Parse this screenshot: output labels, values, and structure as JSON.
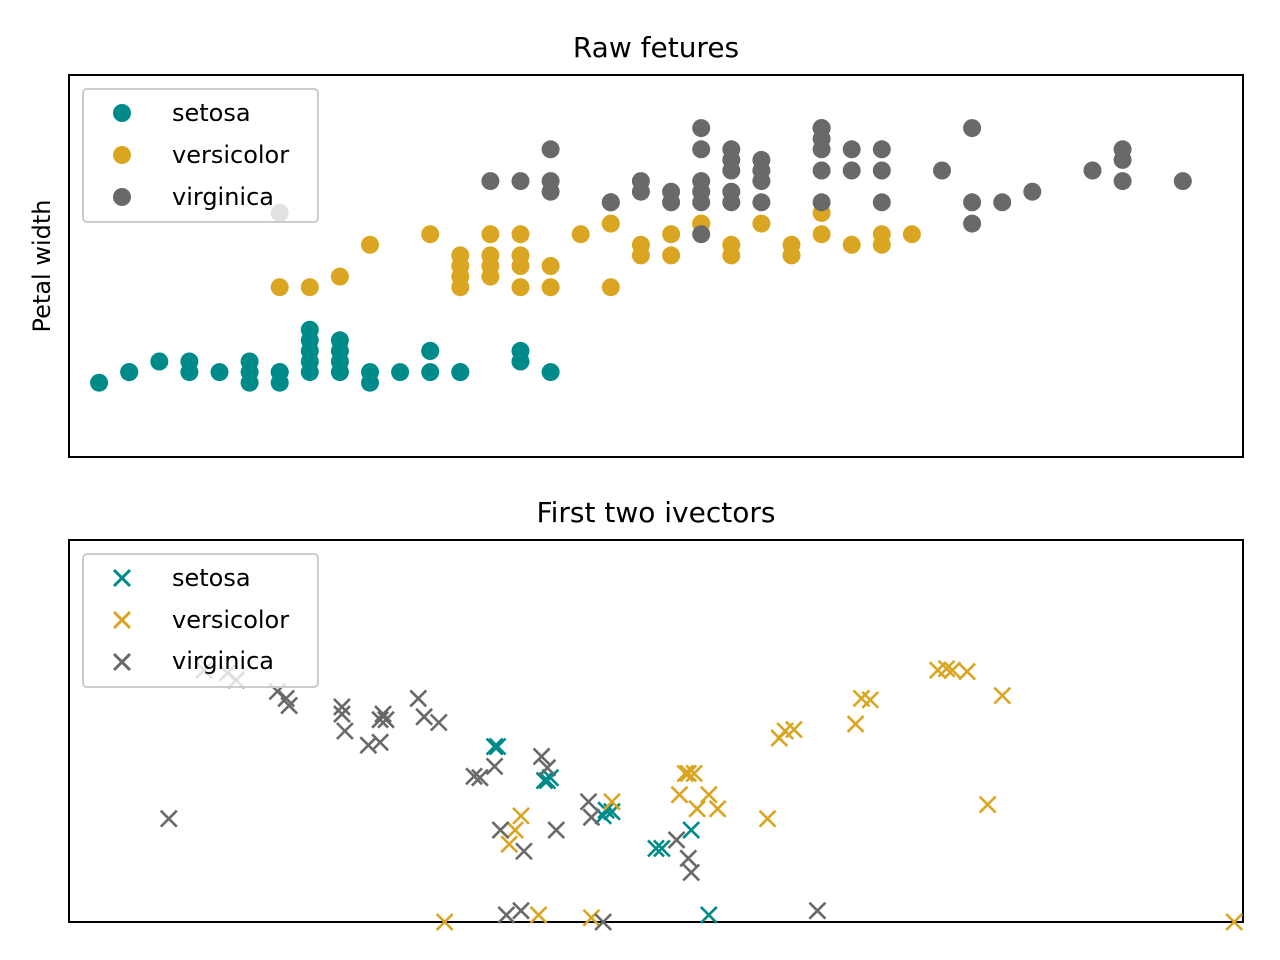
{
  "colors": {
    "setosa": "#008b8b",
    "versicolor": "#daa520",
    "virginica": "#696969"
  },
  "chart_data": [
    {
      "type": "scatter",
      "title": "Raw fetures",
      "xlabel": "",
      "ylabel": "Petal width",
      "xlim": [
        4.2,
        8.1
      ],
      "ylim": [
        -0.6,
        3.0
      ],
      "xticks": [],
      "yticks": [],
      "marker": "o",
      "legend": "top-left",
      "series": [
        {
          "name": "setosa",
          "x": [
            4.3,
            4.4,
            4.4,
            4.5,
            4.6,
            4.6,
            4.7,
            4.8,
            4.8,
            4.8,
            4.9,
            4.9,
            4.9,
            5.0,
            5.0,
            5.0,
            5.0,
            5.0,
            5.1,
            5.1,
            5.1,
            5.1,
            5.2,
            5.2,
            5.3,
            5.4,
            5.4,
            5.4,
            5.5,
            5.5,
            5.7,
            5.7,
            5.8
          ],
          "y": [
            0.1,
            0.2,
            0.2,
            0.3,
            0.2,
            0.3,
            0.2,
            0.1,
            0.2,
            0.3,
            0.1,
            0.2,
            0.2,
            0.2,
            0.3,
            0.4,
            0.5,
            0.6,
            0.2,
            0.3,
            0.4,
            0.5,
            0.1,
            0.2,
            0.2,
            0.2,
            0.4,
            0.4,
            0.2,
            0.2,
            0.3,
            0.4,
            0.2
          ]
        },
        {
          "name": "versicolor",
          "x": [
            4.9,
            5.0,
            5.1,
            5.2,
            5.4,
            5.5,
            5.5,
            5.5,
            5.5,
            5.6,
            5.6,
            5.6,
            5.6,
            5.7,
            5.7,
            5.7,
            5.7,
            5.8,
            5.8,
            5.9,
            6.0,
            6.0,
            6.0,
            6.1,
            6.1,
            6.2,
            6.2,
            6.3,
            6.3,
            6.4,
            6.4,
            6.5,
            6.6,
            6.6,
            6.7,
            6.7,
            6.8,
            6.9,
            6.9,
            7.0
          ],
          "y": [
            1.0,
            1.0,
            1.1,
            1.4,
            1.5,
            1.0,
            1.1,
            1.2,
            1.3,
            1.1,
            1.2,
            1.3,
            1.5,
            1.0,
            1.2,
            1.3,
            1.5,
            1.2,
            1.0,
            1.5,
            1.6,
            1.0,
            1.8,
            1.4,
            1.3,
            1.3,
            1.5,
            1.6,
            1.6,
            1.3,
            1.4,
            1.6,
            1.4,
            1.3,
            1.7,
            1.5,
            1.4,
            1.5,
            1.4,
            1.5
          ]
        },
        {
          "name": "virginica",
          "x": [
            4.9,
            5.6,
            5.7,
            5.8,
            5.8,
            5.8,
            6.0,
            6.0,
            6.1,
            6.1,
            6.2,
            6.2,
            6.3,
            6.3,
            6.3,
            6.3,
            6.3,
            6.3,
            6.4,
            6.4,
            6.4,
            6.4,
            6.4,
            6.5,
            6.5,
            6.5,
            6.5,
            6.7,
            6.7,
            6.7,
            6.7,
            6.7,
            6.7,
            6.8,
            6.8,
            6.9,
            6.9,
            6.9,
            7.1,
            7.2,
            7.2,
            7.2,
            7.3,
            7.4,
            7.6,
            7.7,
            7.7,
            7.7,
            7.9
          ],
          "y": [
            1.7,
            2.0,
            2.0,
            2.0,
            2.3,
            1.9,
            1.8,
            1.8,
            1.9,
            2.0,
            1.9,
            1.8,
            1.8,
            2.3,
            2.5,
            1.9,
            1.5,
            2.0,
            1.8,
            2.1,
            2.2,
            1.9,
            2.3,
            2.1,
            2.2,
            1.8,
            2.0,
            2.3,
            2.4,
            2.5,
            2.5,
            1.8,
            2.1,
            2.1,
            2.3,
            2.3,
            2.1,
            1.8,
            2.1,
            1.8,
            1.6,
            2.5,
            1.8,
            1.9,
            2.1,
            2.0,
            2.2,
            2.3,
            2.0
          ]
        }
      ]
    },
    {
      "type": "scatter",
      "title": "First two ivectors",
      "xlabel": "",
      "ylabel": "",
      "xlim": [
        -2.0,
        2.0
      ],
      "ylim": [
        -1.0,
        1.7
      ],
      "xticks": [],
      "yticks": [],
      "marker": "x",
      "legend": "top-left",
      "series": [
        {
          "name": "setosa",
          "x": [
            -0.55,
            -0.54,
            -0.38,
            -0.37,
            -0.36,
            -0.18,
            -0.17,
            -0.15,
            0.0,
            0.02,
            0.12,
            0.18
          ],
          "y": [
            0.24,
            0.24,
            0.0,
            0.0,
            0.02,
            -0.25,
            -0.21,
            -0.22,
            -0.48,
            -0.48,
            -0.35,
            -0.95
          ],
          "dense_cluster": true
        },
        {
          "name": "versicolor",
          "x": [
            -0.72,
            -0.5,
            -0.48,
            -0.46,
            -0.4,
            -0.22,
            -0.15,
            0.08,
            0.1,
            0.11,
            0.13,
            0.14,
            0.18,
            0.21,
            0.38,
            0.42,
            0.44,
            0.47,
            0.68,
            0.7,
            0.73,
            0.96,
            0.99,
            1.01,
            1.06,
            1.13,
            1.18,
            1.97
          ],
          "y": [
            -1.0,
            -0.45,
            -0.35,
            -0.25,
            -0.95,
            -0.97,
            -0.15,
            -0.1,
            0.05,
            0.05,
            0.05,
            -0.2,
            -0.1,
            -0.2,
            -0.27,
            0.3,
            0.35,
            0.36,
            0.4,
            0.58,
            0.57,
            0.78,
            0.79,
            0.78,
            0.77,
            -0.17,
            0.6,
            -1.0
          ]
        },
        {
          "name": "virginica",
          "x": [
            -1.66,
            -1.54,
            -1.46,
            -1.43,
            -1.29,
            -1.26,
            -1.25,
            -1.07,
            -1.07,
            -1.06,
            -0.98,
            -0.94,
            -0.94,
            -0.93,
            -0.92,
            -0.81,
            -0.79,
            -0.74,
            -0.62,
            -0.6,
            -0.55,
            -0.53,
            -0.51,
            -0.45,
            -0.46,
            -0.39,
            -0.37,
            -0.34,
            -0.23,
            -0.22,
            -0.18,
            0.07,
            0.11,
            0.12,
            0.55
          ],
          "y": [
            -0.27,
            0.78,
            0.76,
            0.71,
            0.63,
            0.58,
            0.53,
            0.52,
            0.47,
            0.35,
            0.25,
            0.27,
            0.43,
            0.47,
            0.43,
            0.58,
            0.45,
            0.41,
            0.03,
            0.02,
            0.1,
            -0.35,
            -0.95,
            -0.5,
            -0.92,
            0.17,
            0.09,
            -0.35,
            -0.15,
            -0.26,
            -1.0,
            -0.42,
            -0.55,
            -0.65,
            -0.92
          ]
        }
      ]
    }
  ],
  "legend": {
    "setosa": "setosa",
    "versicolor": "versicolor",
    "virginica": "virginica"
  }
}
